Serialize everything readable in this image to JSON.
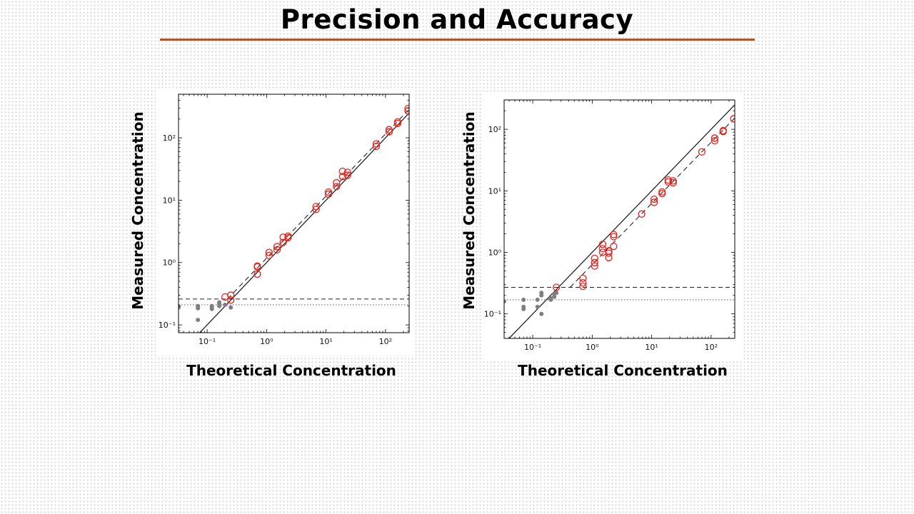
{
  "slide": {
    "title": "Precision and Accuracy",
    "accent_color": "#c0501f"
  },
  "chart_data": [
    {
      "type": "scatter",
      "xlabel": "Theoretical Concentration",
      "ylabel": "Measured Concentration",
      "x_scale": "log",
      "y_scale": "log",
      "xlim": [
        0.033,
        250
      ],
      "ylim": [
        0.075,
        500
      ],
      "x_ticks": [
        {
          "v": 0.1,
          "l": "10⁻¹"
        },
        {
          "v": 1,
          "l": "10⁰"
        },
        {
          "v": 10,
          "l": "10¹"
        },
        {
          "v": 100,
          "l": "10²"
        }
      ],
      "y_ticks": [
        {
          "v": 0.1,
          "l": "10⁻¹"
        },
        {
          "v": 1,
          "l": "10⁰"
        },
        {
          "v": 10,
          "l": "10¹"
        },
        {
          "v": 100,
          "l": "10²"
        }
      ],
      "grid": false,
      "reference_lines": {
        "identity": true,
        "fit_dashed": true,
        "dashed_level": 0.26,
        "dotted_level": 0.21
      },
      "series": [
        {
          "color": "#7f7f7f",
          "marker": "filled",
          "points": [
            [
              0.033,
              0.19
            ],
            [
              0.033,
              0.2
            ],
            [
              0.07,
              0.185
            ],
            [
              0.07,
              0.2
            ],
            [
              0.07,
              0.12
            ],
            [
              0.12,
              0.19
            ],
            [
              0.12,
              0.2
            ],
            [
              0.12,
              0.18
            ],
            [
              0.16,
              0.2
            ],
            [
              0.16,
              0.22
            ],
            [
              0.16,
              0.23
            ],
            [
              0.2,
              0.21
            ],
            [
              0.25,
              0.19
            ]
          ]
        },
        {
          "color": "#e8201a",
          "marker": "open",
          "points": [
            [
              0.2,
              0.28
            ],
            [
              0.25,
              0.3
            ],
            [
              0.25,
              0.25
            ],
            [
              0.7,
              0.65
            ],
            [
              0.7,
              0.85
            ],
            [
              0.7,
              0.88
            ],
            [
              1.1,
              1.3
            ],
            [
              1.1,
              1.45
            ],
            [
              1.5,
              1.6
            ],
            [
              1.5,
              1.8
            ],
            [
              1.9,
              2.1
            ],
            [
              1.9,
              2.55
            ],
            [
              2.3,
              2.5
            ],
            [
              2.3,
              2.65
            ],
            [
              6.8,
              7.1
            ],
            [
              6.8,
              7.9
            ],
            [
              11,
              12.5
            ],
            [
              11,
              13.5
            ],
            [
              15,
              16.5
            ],
            [
              15,
              19
            ],
            [
              19,
              24
            ],
            [
              19,
              29
            ],
            [
              23,
              25
            ],
            [
              23,
              28
            ],
            [
              70,
              73
            ],
            [
              70,
              80
            ],
            [
              115,
              125
            ],
            [
              115,
              135
            ],
            [
              160,
              170
            ],
            [
              160,
              180
            ],
            [
              240,
              270
            ],
            [
              240,
              295
            ]
          ]
        }
      ]
    },
    {
      "type": "scatter",
      "xlabel": "Theoretical Concentration",
      "ylabel": "Measured Concentration",
      "x_scale": "log",
      "y_scale": "log",
      "xlim": [
        0.033,
        250
      ],
      "ylim": [
        0.04,
        300
      ],
      "x_ticks": [
        {
          "v": 0.1,
          "l": "10⁻¹"
        },
        {
          "v": 1,
          "l": "10⁰"
        },
        {
          "v": 10,
          "l": "10¹"
        },
        {
          "v": 100,
          "l": "10²"
        }
      ],
      "y_ticks": [
        {
          "v": 0.1,
          "l": "10⁻¹"
        },
        {
          "v": 1,
          "l": "10⁰"
        },
        {
          "v": 10,
          "l": "10¹"
        },
        {
          "v": 100,
          "l": "10²"
        }
      ],
      "grid": false,
      "reference_lines": {
        "identity": true,
        "fit_dashed": true,
        "dashed_level": 0.27,
        "dotted_level": 0.17
      },
      "series": [
        {
          "color": "#7f7f7f",
          "marker": "filled",
          "points": [
            [
              0.033,
              0.16
            ],
            [
              0.07,
              0.17
            ],
            [
              0.07,
              0.13
            ],
            [
              0.07,
              0.12
            ],
            [
              0.12,
              0.17
            ],
            [
              0.12,
              0.13
            ],
            [
              0.14,
              0.1
            ],
            [
              0.14,
              0.2
            ],
            [
              0.14,
              0.22
            ],
            [
              0.2,
              0.17
            ],
            [
              0.2,
              0.18
            ],
            [
              0.23,
              0.19
            ],
            [
              0.23,
              0.21
            ],
            [
              0.25,
              0.22
            ]
          ]
        },
        {
          "color": "#e8201a",
          "marker": "open",
          "points": [
            [
              0.25,
              0.27
            ],
            [
              0.7,
              0.28
            ],
            [
              0.7,
              0.32
            ],
            [
              0.7,
              0.38
            ],
            [
              1.1,
              0.6
            ],
            [
              1.1,
              0.68
            ],
            [
              1.1,
              0.8
            ],
            [
              1.5,
              1.0
            ],
            [
              1.5,
              1.15
            ],
            [
              1.5,
              1.35
            ],
            [
              1.9,
              0.82
            ],
            [
              1.9,
              0.97
            ],
            [
              1.9,
              1.05
            ],
            [
              2.3,
              1.25
            ],
            [
              2.3,
              1.8
            ],
            [
              2.3,
              1.95
            ],
            [
              6.8,
              4.2
            ],
            [
              11,
              6.5
            ],
            [
              11,
              7.3
            ],
            [
              15,
              9.0
            ],
            [
              15,
              9.6
            ],
            [
              19,
              14
            ],
            [
              19,
              15
            ],
            [
              23,
              13.5
            ],
            [
              23,
              14.5
            ],
            [
              70,
              43
            ],
            [
              115,
              65
            ],
            [
              115,
              72
            ],
            [
              160,
              92
            ],
            [
              160,
              95
            ],
            [
              240,
              148
            ]
          ]
        }
      ]
    }
  ]
}
